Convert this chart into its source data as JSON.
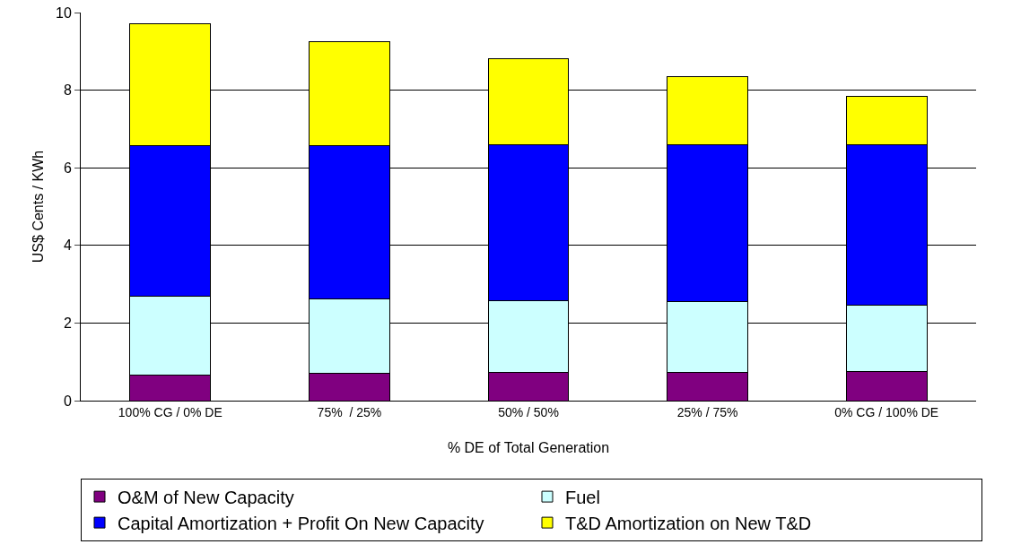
{
  "chart_data": {
    "type": "bar",
    "stacked": true,
    "xlabel": "% DE of Total Generation",
    "ylabel": "US$ Cents / KWh",
    "categories": [
      "100% CG / 0% DE",
      "75%  / 25%",
      "50% / 50%",
      "25% / 75%",
      "0% CG / 100% DE"
    ],
    "series": [
      {
        "name": "O&M of New Capacity",
        "color": "#800080",
        "values": [
          0.65,
          0.7,
          0.72,
          0.73,
          0.75
        ]
      },
      {
        "name": "Fuel",
        "color": "#ccffff",
        "values": [
          2.05,
          1.92,
          1.86,
          1.82,
          1.7
        ]
      },
      {
        "name": "Capital Amortization + Profit On New Capacity",
        "color": "#0000ff",
        "values": [
          3.87,
          3.95,
          4.02,
          4.05,
          4.15
        ]
      },
      {
        "name": "T&D Amortization on New T&D",
        "color": "#ffff00",
        "values": [
          3.13,
          2.68,
          2.2,
          1.75,
          1.25
        ]
      }
    ],
    "ylim": [
      0,
      10
    ],
    "yticks": [
      0,
      2,
      4,
      6,
      8,
      10
    ],
    "grid": "y",
    "legend": "bottom"
  }
}
